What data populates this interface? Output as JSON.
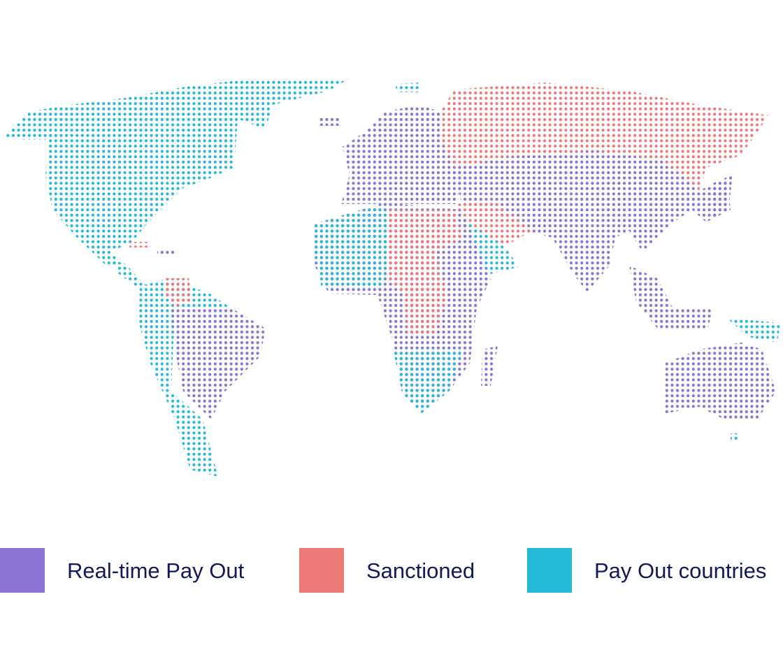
{
  "legend": {
    "items": [
      {
        "label": "Real-time Pay Out",
        "color": "#8a74d2"
      },
      {
        "label": "Sanctioned",
        "color": "#ec7a78"
      },
      {
        "label": "Pay Out countries",
        "color": "#25b9d8"
      }
    ]
  }
}
